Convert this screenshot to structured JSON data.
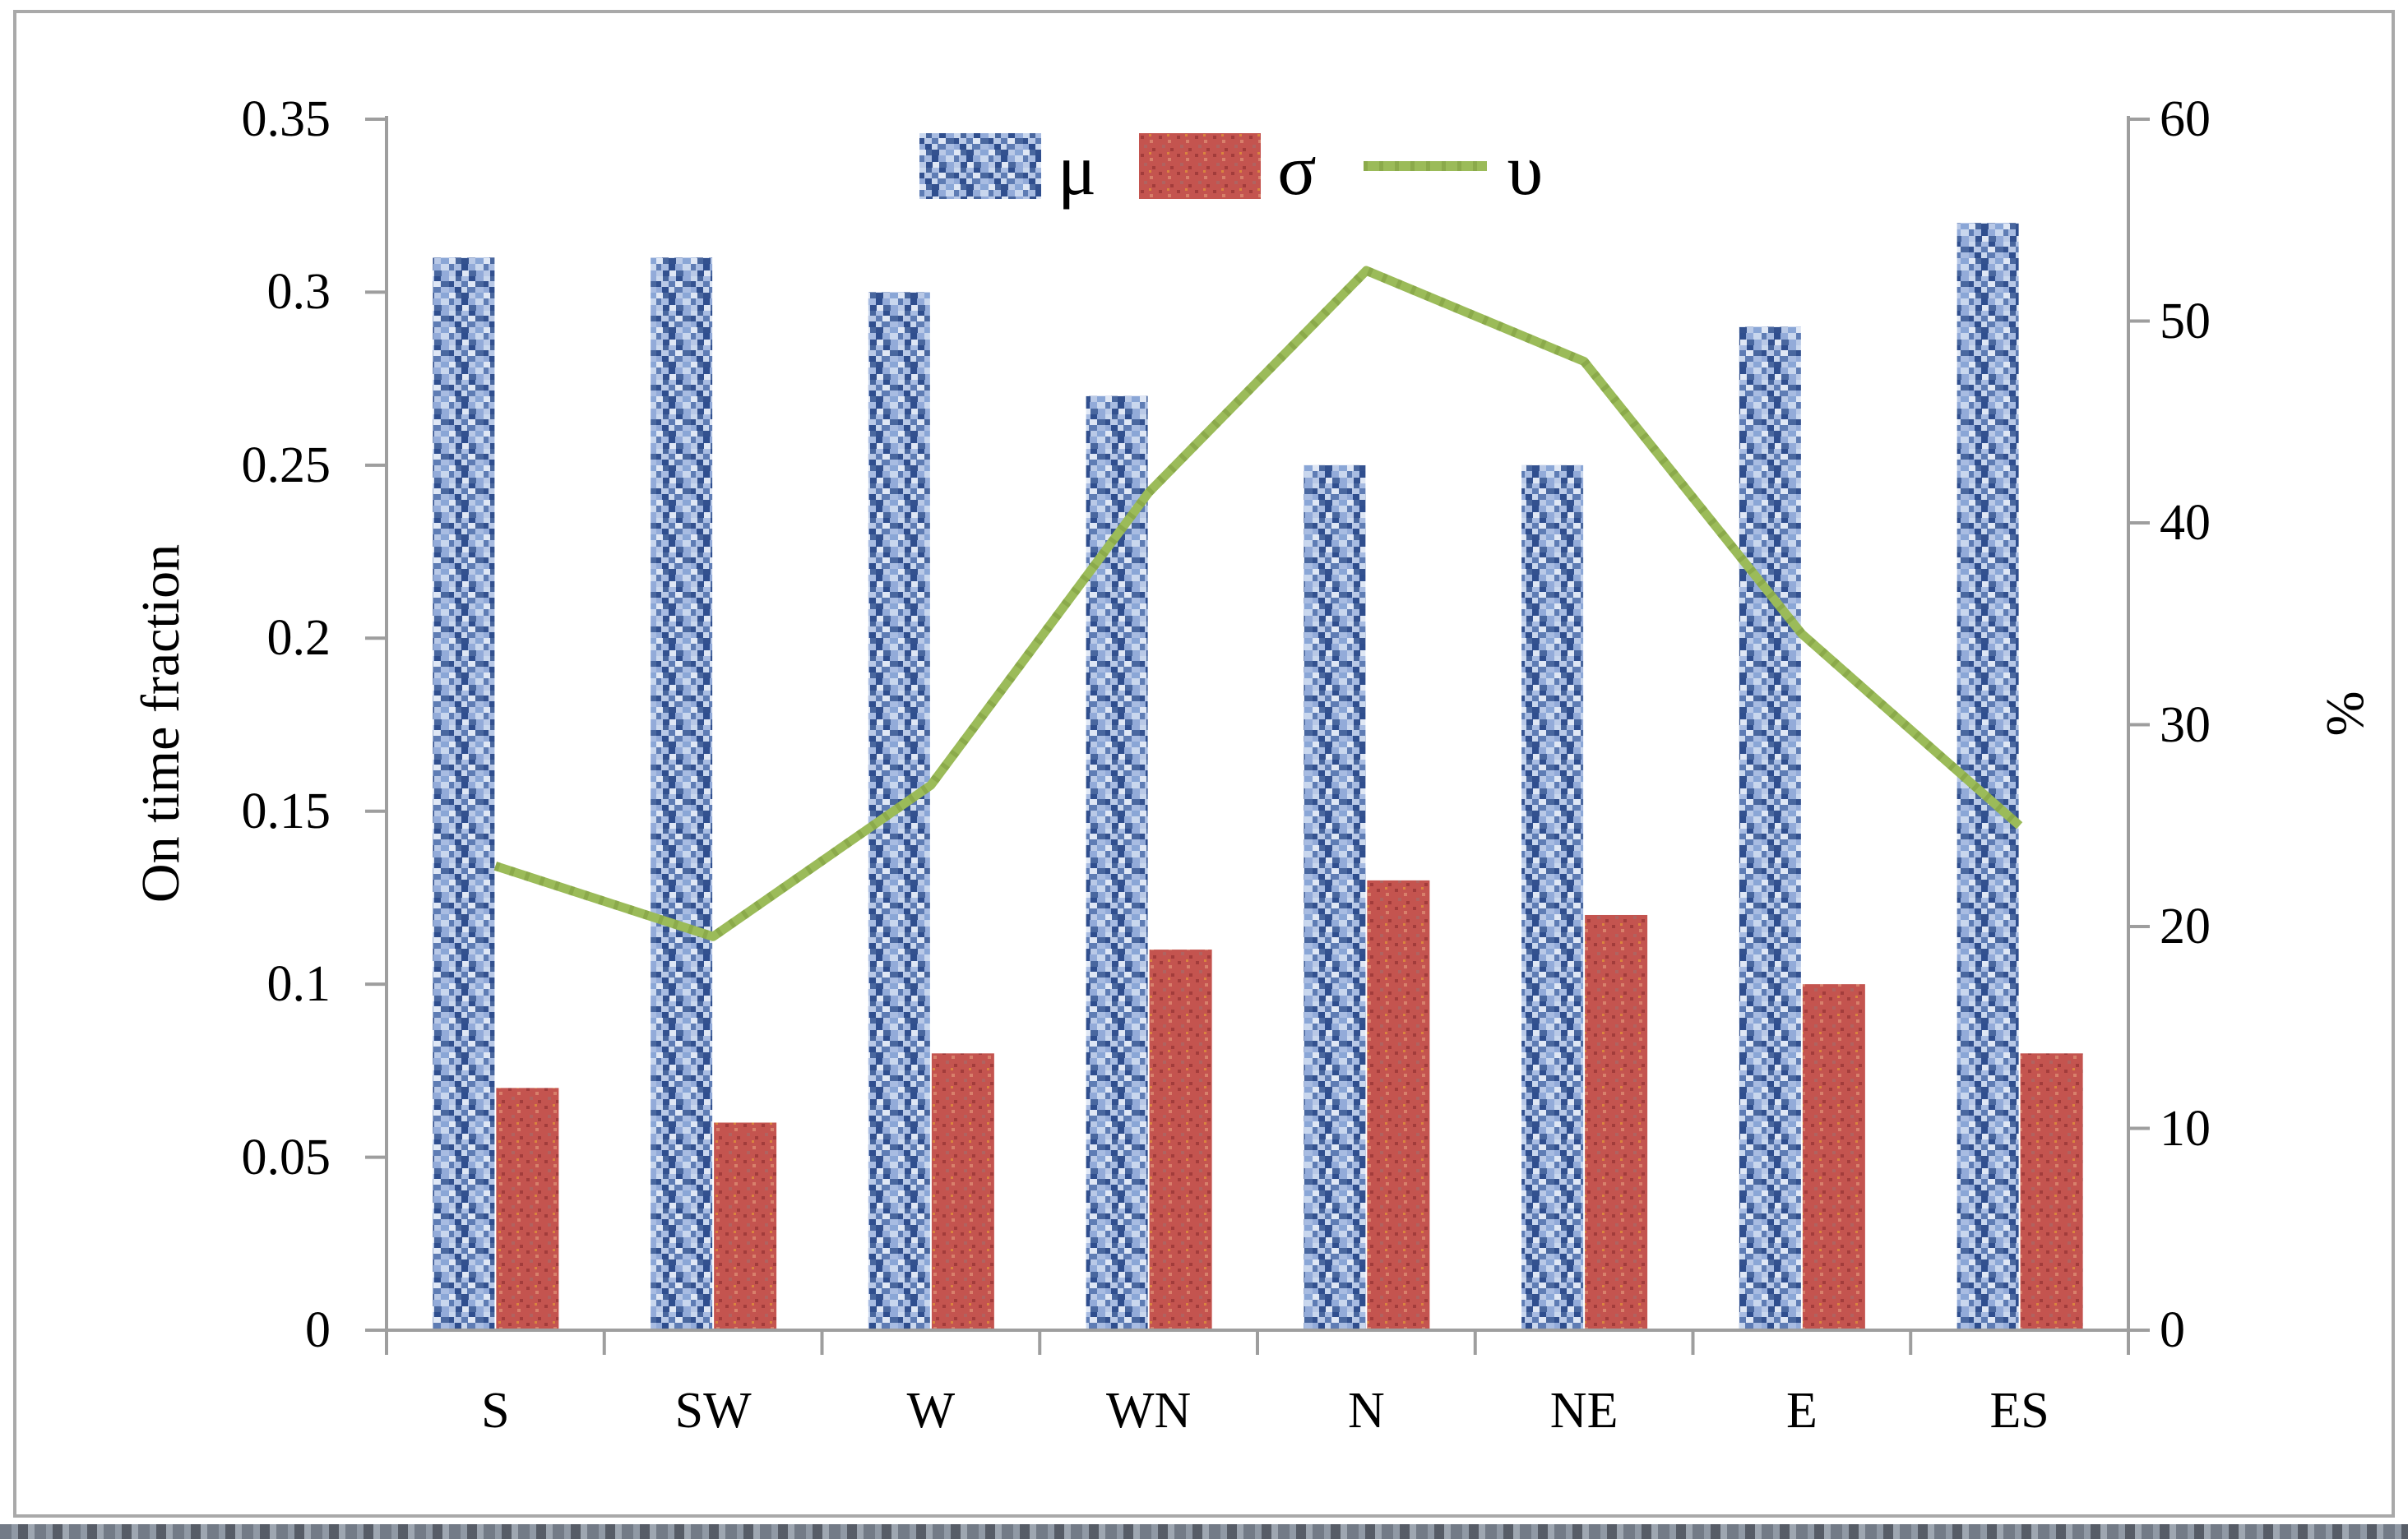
{
  "window": {
    "background": "#ffffff",
    "frame_color": "#a9a9a9"
  },
  "legend": {
    "items": [
      {
        "label": "μ",
        "swatch": "blue-mottled-rect"
      },
      {
        "label": "σ",
        "swatch": "red-speckled-rect"
      },
      {
        "label": "υ",
        "swatch": "green-line"
      }
    ]
  },
  "chart_data": {
    "type": "combo",
    "title": "",
    "categories": [
      "S",
      "SW",
      "W",
      "WN",
      "N",
      "NE",
      "E",
      "ES"
    ],
    "series": [
      {
        "name": "μ",
        "type": "bar",
        "axis": "left",
        "pattern": "mottled-blue",
        "color": "#7593c9",
        "values": [
          0.31,
          0.31,
          0.3,
          0.27,
          0.25,
          0.25,
          0.29,
          0.32
        ]
      },
      {
        "name": "σ",
        "type": "bar",
        "axis": "left",
        "pattern": "speckled-red",
        "color": "#c0504d",
        "values": [
          0.07,
          0.06,
          0.08,
          0.11,
          0.13,
          0.12,
          0.1,
          0.08
        ]
      },
      {
        "name": "υ",
        "type": "line",
        "axis": "right",
        "color": "#9bbb59",
        "values": [
          23,
          19.5,
          27,
          41.5,
          52.5,
          48,
          34.5,
          25
        ]
      }
    ],
    "left_axis": {
      "label": "On time fraction",
      "min": 0,
      "max": 0.35,
      "tick_step": 0.05,
      "ticks": [
        "0",
        "0.05",
        "0.1",
        "0.15",
        "0.2",
        "0.25",
        "0.3",
        "0.35"
      ]
    },
    "right_axis": {
      "label": "%",
      "min": 0,
      "max": 60,
      "tick_step": 10,
      "ticks": [
        "0",
        "10",
        "20",
        "30",
        "40",
        "50",
        "60"
      ]
    },
    "legend_position": "top-center",
    "grid": false,
    "axis_color": "#9e9e9e",
    "text_color": "#000000"
  }
}
